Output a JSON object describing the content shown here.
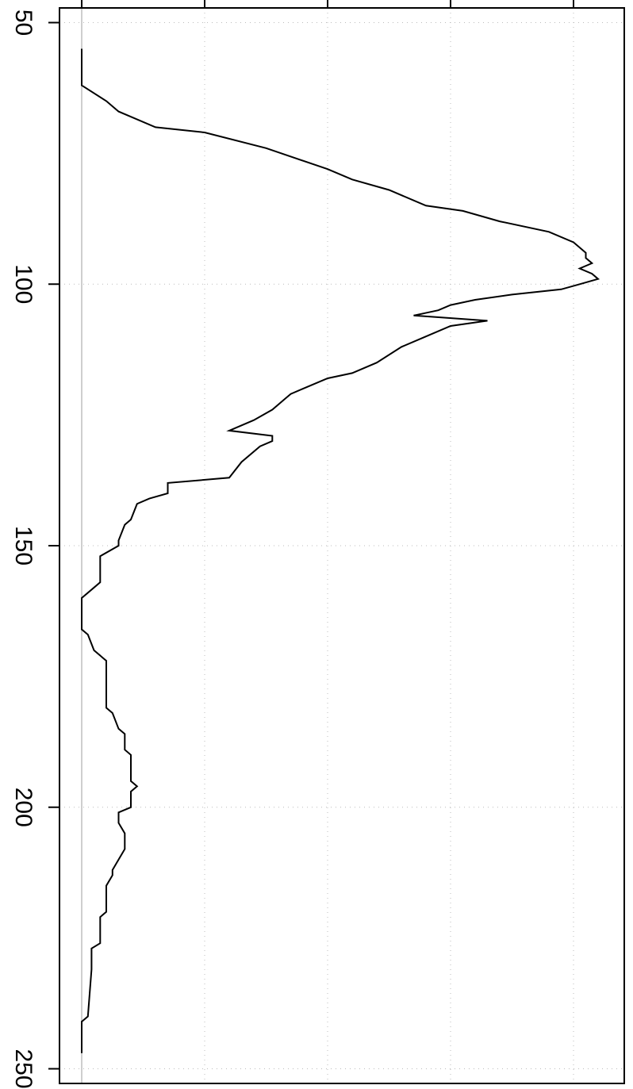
{
  "chart_data": {
    "type": "line",
    "orientation": "rotated-90",
    "title": "",
    "xlabel": "",
    "ylabel": "",
    "x_axis": {
      "range": [
        50,
        250
      ],
      "ticks": [
        50,
        100,
        150,
        200,
        250
      ],
      "tick_labels": [
        "50",
        "100",
        "150",
        "200",
        "250"
      ]
    },
    "y_axis": {
      "range": [
        -0.2,
        4.4
      ],
      "ticks": [
        0,
        1,
        2,
        3,
        4
      ],
      "tick_labels": [
        "",
        "",
        "",
        "",
        ""
      ]
    },
    "grid": true,
    "baseline": 0,
    "series": [
      {
        "x": [
          55,
          62,
          65,
          67,
          68,
          70,
          71,
          74,
          78,
          80,
          82,
          85,
          86,
          88,
          90,
          92,
          93,
          94,
          95,
          96,
          97,
          98,
          99,
          100,
          101,
          102,
          103,
          104,
          105,
          106,
          107,
          108,
          110,
          112,
          115,
          117,
          118,
          120,
          121,
          122,
          124,
          126,
          128,
          129,
          130,
          131,
          134,
          137,
          138,
          140,
          141,
          142,
          145,
          146,
          149,
          150,
          152,
          157,
          158,
          160,
          166,
          167,
          170,
          172,
          175,
          181,
          182,
          185,
          186,
          189,
          190,
          195,
          196,
          197,
          200,
          201,
          203,
          205,
          208,
          210,
          212,
          213,
          215,
          217,
          220,
          221,
          226,
          227,
          231,
          240,
          241,
          247
        ],
        "y": [
          0.0,
          0.0,
          0.2,
          0.3,
          0.4,
          0.6,
          1.0,
          1.5,
          2.0,
          2.2,
          2.5,
          2.8,
          3.1,
          3.4,
          3.8,
          4.0,
          4.05,
          4.1,
          4.1,
          4.15,
          4.05,
          4.15,
          4.2,
          4.05,
          3.9,
          3.5,
          3.2,
          3.0,
          2.9,
          2.7,
          3.3,
          3.0,
          2.8,
          2.6,
          2.4,
          2.2,
          2.0,
          1.8,
          1.7,
          1.65,
          1.55,
          1.4,
          1.2,
          1.55,
          1.55,
          1.45,
          1.3,
          1.2,
          0.7,
          0.7,
          0.55,
          0.45,
          0.4,
          0.35,
          0.3,
          0.3,
          0.15,
          0.15,
          0.1,
          0.0,
          0.0,
          0.05,
          0.1,
          0.2,
          0.2,
          0.2,
          0.25,
          0.3,
          0.35,
          0.35,
          0.4,
          0.4,
          0.45,
          0.4,
          0.4,
          0.3,
          0.3,
          0.35,
          0.35,
          0.3,
          0.25,
          0.25,
          0.2,
          0.2,
          0.2,
          0.15,
          0.15,
          0.08,
          0.08,
          0.05,
          0.0,
          0.0
        ]
      }
    ]
  }
}
